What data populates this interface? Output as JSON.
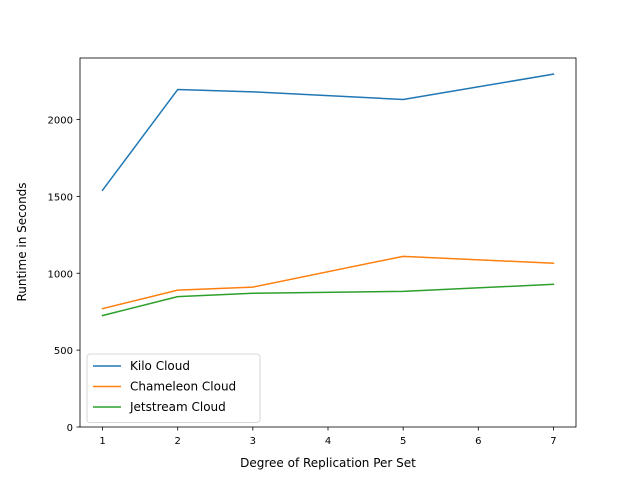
{
  "chart_data": {
    "type": "line",
    "title": "",
    "xlabel": "Degree of Replication Per Set",
    "ylabel": "Runtime in Seconds",
    "xlim": [
      0.7,
      7.3
    ],
    "ylim": [
      0,
      2400
    ],
    "xticks": [
      1,
      2,
      3,
      4,
      5,
      6,
      7
    ],
    "yticks": [
      0,
      500,
      1000,
      1500,
      2000
    ],
    "grid": false,
    "legend_position": "lower-left",
    "x": [
      1,
      2,
      3,
      5,
      7
    ],
    "series": [
      {
        "name": "Kilo Cloud",
        "color": "#1f77b4",
        "values": [
          1540,
          2195,
          2180,
          2130,
          2295
        ]
      },
      {
        "name": "Chameleon Cloud",
        "color": "#ff7f0e",
        "values": [
          770,
          890,
          910,
          1110,
          1065
        ]
      },
      {
        "name": "Jetstream Cloud",
        "color": "#2ca02c",
        "values": [
          725,
          848,
          870,
          882,
          928
        ]
      }
    ]
  }
}
